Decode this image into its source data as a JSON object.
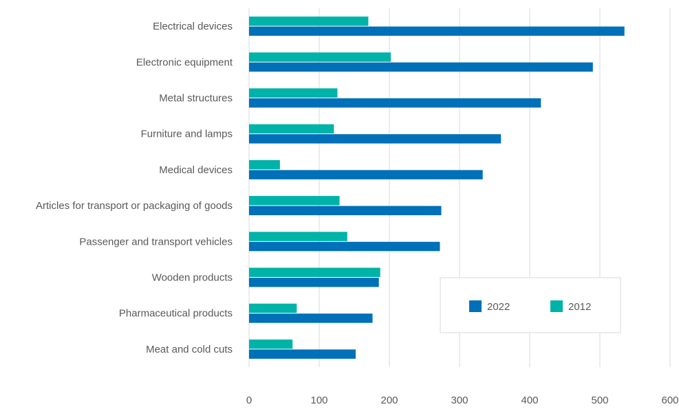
{
  "chart_data": {
    "type": "bar",
    "orientation": "horizontal",
    "categories": [
      "Electrical devices",
      "Electronic equipment",
      "Metal structures",
      "Furniture and lamps",
      "Medical devices",
      "Articles for transport or packaging of goods",
      "Passenger and transport vehicles",
      "Wooden products",
      "Pharmaceutical products",
      "Meat and cold cuts"
    ],
    "series": [
      {
        "name": "2012",
        "color": "#00b3a8",
        "values": [
          170,
          202,
          126,
          121,
          44,
          129,
          140,
          187,
          68,
          62
        ]
      },
      {
        "name": "2022",
        "color": "#0070b8",
        "values": [
          535,
          490,
          416,
          359,
          333,
          274,
          272,
          185,
          176,
          152
        ]
      }
    ],
    "legend_order": [
      "2022",
      "2012"
    ],
    "xlim": [
      0,
      600
    ],
    "xticks": [
      "0",
      "100",
      "200",
      "300",
      "400",
      "500",
      "600"
    ],
    "grid": true,
    "legend_position": "bottom-right",
    "title": "",
    "xlabel": "",
    "ylabel": ""
  }
}
